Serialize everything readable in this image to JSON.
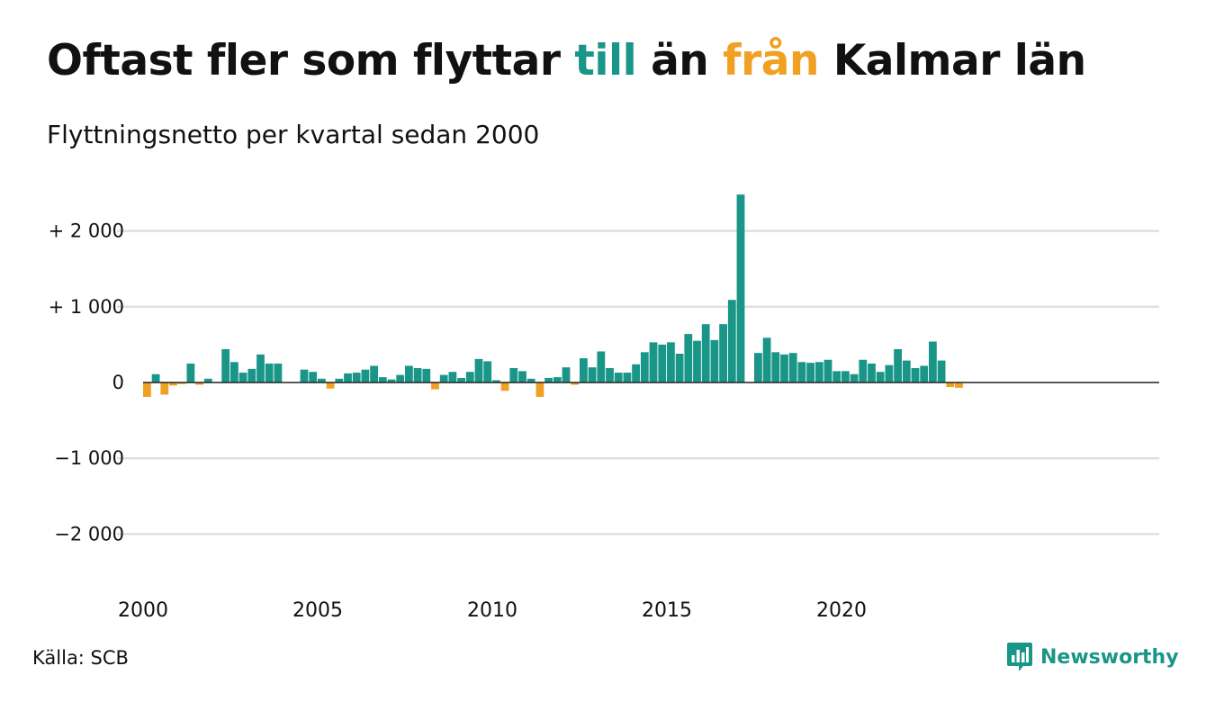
{
  "title": {
    "prefix": "Oftast fler som flyttar",
    "highlight_pos": "till",
    "middle": "än",
    "highlight_neg": "från",
    "suffix": "Kalmar län"
  },
  "subtitle": "Flyttningsnetto per kvartal sedan 2000",
  "source": "Källa: SCB",
  "brand": {
    "name": "Newsworthy",
    "icon": "newsworthy-logo-icon"
  },
  "colors": {
    "positive": "#1a9688",
    "negative": "#f0a023",
    "grid": "#e0e0e0",
    "zero_line": "#222222",
    "text": "#111111"
  },
  "chart_data": {
    "type": "bar",
    "title": "Oftast fler som flyttar till än från Kalmar län",
    "subtitle": "Flyttningsnetto per kvartal sedan 2000",
    "xlabel": "",
    "ylabel": "",
    "x_start": 2000,
    "periods_per_year": 4,
    "ylim": [
      -2700,
      2500
    ],
    "yticks": [
      2000,
      1000,
      0,
      -1000,
      -2000
    ],
    "ytick_labels": [
      "+ 2 000",
      "+ 1 000",
      "0",
      "−1 000",
      "−2 000"
    ],
    "xticks": [
      2000,
      2005,
      2010,
      2015,
      2020
    ],
    "xtick_labels": [
      "2000",
      "2005",
      "2010",
      "2015",
      "2020"
    ],
    "grid": true,
    "legend": "none",
    "values": [
      -190,
      110,
      -160,
      -40,
      -20,
      250,
      -30,
      50,
      0,
      440,
      270,
      130,
      180,
      370,
      250,
      250,
      0,
      0,
      170,
      140,
      50,
      -80,
      50,
      120,
      130,
      170,
      220,
      70,
      40,
      100,
      220,
      190,
      180,
      -90,
      100,
      140,
      60,
      140,
      310,
      280,
      30,
      -110,
      190,
      150,
      50,
      -190,
      60,
      70,
      200,
      -30,
      320,
      200,
      410,
      190,
      130,
      130,
      240,
      400,
      530,
      500,
      530,
      380,
      640,
      550,
      770,
      560,
      770,
      1090,
      2480,
      0,
      390,
      590,
      400,
      370,
      390,
      270,
      260,
      270,
      300,
      150,
      150,
      110,
      300,
      250,
      140,
      230,
      440,
      290,
      190,
      220,
      540,
      290,
      -60,
      -70
    ]
  }
}
